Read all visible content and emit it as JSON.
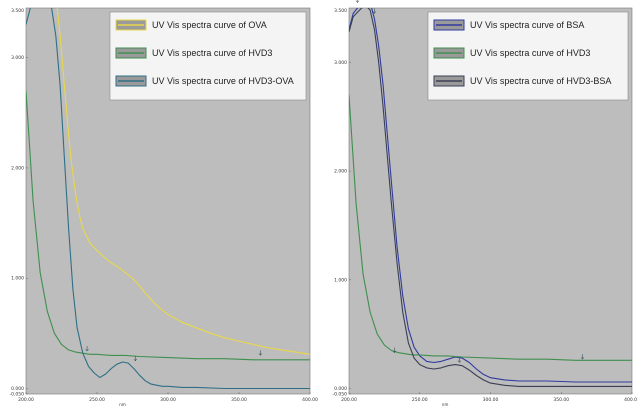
{
  "chart_data": [
    {
      "type": "line",
      "xlim": [
        200,
        400
      ],
      "ylim": [
        -0.05,
        3.45
      ],
      "x_ticks": [
        "200.00",
        "250.00",
        "300.00",
        "350.00",
        "400.00"
      ],
      "y_ticks": [
        "3.500",
        "3.000",
        "2.000",
        "1.000",
        "0.000",
        "-0.050"
      ],
      "xlabel": "nm",
      "ylabel": "",
      "grid": false,
      "background": "#bdbdbd",
      "legend_position": "top-right",
      "series": [
        {
          "name": "UV Vis spectra curve of OVA",
          "color": "#e8d84a",
          "x": [
            222,
            224,
            226,
            228,
            230,
            232,
            234,
            236,
            238,
            240,
            245,
            250,
            255,
            260,
            265,
            270,
            275,
            280,
            285,
            290,
            295,
            300,
            310,
            320,
            330,
            340,
            350,
            360,
            370,
            380,
            390,
            400
          ],
          "y": [
            3.45,
            3.2,
            2.9,
            2.6,
            2.3,
            2.05,
            1.85,
            1.68,
            1.55,
            1.45,
            1.32,
            1.25,
            1.19,
            1.14,
            1.1,
            1.05,
            1.0,
            0.93,
            0.85,
            0.78,
            0.72,
            0.67,
            0.6,
            0.55,
            0.5,
            0.46,
            0.43,
            0.4,
            0.37,
            0.35,
            0.33,
            0.31
          ]
        },
        {
          "name": "UV Vis spectra curve of HVD3",
          "color": "#3f8f4f",
          "x": [
            200,
            205,
            210,
            215,
            220,
            225,
            230,
            235,
            240,
            245,
            250,
            260,
            270,
            280,
            300,
            320,
            340,
            360,
            380,
            400
          ],
          "y": [
            2.7,
            1.7,
            1.05,
            0.7,
            0.5,
            0.4,
            0.35,
            0.33,
            0.32,
            0.31,
            0.31,
            0.3,
            0.3,
            0.29,
            0.28,
            0.27,
            0.27,
            0.26,
            0.26,
            0.26
          ]
        },
        {
          "name": "UV Vis spectra curve of HVD3-OVA",
          "color": "#2f6f86",
          "x": [
            200,
            203,
            206,
            209,
            212,
            215,
            218,
            221,
            224,
            227,
            230,
            233,
            236,
            240,
            244,
            248,
            252,
            256,
            260,
            264,
            268,
            272,
            276,
            280,
            284,
            288,
            292,
            296,
            300,
            310,
            320,
            340,
            360,
            380,
            400
          ],
          "y": [
            3.3,
            3.45,
            3.5,
            3.55,
            3.57,
            3.55,
            3.45,
            3.2,
            2.75,
            2.1,
            1.45,
            0.9,
            0.55,
            0.32,
            0.2,
            0.14,
            0.1,
            0.13,
            0.18,
            0.22,
            0.24,
            0.23,
            0.18,
            0.12,
            0.07,
            0.04,
            0.03,
            0.02,
            0.02,
            0.01,
            0.01,
            0.0,
            0.0,
            0.0,
            0.0
          ]
        }
      ]
    },
    {
      "type": "line",
      "xlim": [
        200,
        400
      ],
      "ylim": [
        -0.05,
        3.5
      ],
      "x_ticks": [
        "200.00",
        "250.00",
        "300.00",
        "350.00",
        "400.00"
      ],
      "y_ticks": [
        "3.500",
        "3.000",
        "2.000",
        "1.000",
        "0.000",
        "-0.050"
      ],
      "xlabel": "nm",
      "ylabel": "",
      "grid": false,
      "background": "#bdbdbd",
      "legend_position": "top-right",
      "series": [
        {
          "name": "UV Vis spectra curve of BSA",
          "color": "#2f3aa0",
          "x": [
            200,
            203,
            206,
            209,
            212,
            215,
            218,
            221,
            224,
            227,
            230,
            234,
            238,
            242,
            246,
            250,
            255,
            260,
            265,
            270,
            275,
            280,
            285,
            290,
            295,
            300,
            310,
            320,
            340,
            360,
            380,
            400
          ],
          "y": [
            3.3,
            3.45,
            3.5,
            3.55,
            3.6,
            3.55,
            3.4,
            3.15,
            2.8,
            2.35,
            1.9,
            1.3,
            0.85,
            0.55,
            0.38,
            0.3,
            0.25,
            0.24,
            0.25,
            0.27,
            0.29,
            0.28,
            0.24,
            0.18,
            0.13,
            0.1,
            0.08,
            0.07,
            0.07,
            0.06,
            0.06,
            0.06
          ]
        },
        {
          "name": "UV Vis spectra curve of HVD3",
          "color": "#3f8f4f",
          "x": [
            200,
            205,
            210,
            215,
            220,
            225,
            230,
            235,
            240,
            245,
            250,
            260,
            270,
            280,
            300,
            320,
            340,
            360,
            380,
            400
          ],
          "y": [
            2.7,
            1.7,
            1.05,
            0.7,
            0.5,
            0.4,
            0.35,
            0.33,
            0.32,
            0.31,
            0.31,
            0.3,
            0.3,
            0.29,
            0.28,
            0.27,
            0.27,
            0.26,
            0.26,
            0.26
          ]
        },
        {
          "name": "UV Vis spectra curve of HVD3-BSA",
          "color": "#3a3f55",
          "x": [
            200,
            203,
            206,
            209,
            212,
            215,
            218,
            221,
            224,
            227,
            230,
            234,
            238,
            242,
            246,
            250,
            255,
            260,
            265,
            270,
            275,
            280,
            285,
            290,
            295,
            300,
            310,
            320,
            340,
            360,
            380,
            400
          ],
          "y": [
            3.28,
            3.42,
            3.46,
            3.5,
            3.52,
            3.48,
            3.3,
            3.0,
            2.6,
            2.15,
            1.7,
            1.15,
            0.7,
            0.42,
            0.28,
            0.22,
            0.19,
            0.18,
            0.19,
            0.21,
            0.22,
            0.21,
            0.17,
            0.12,
            0.08,
            0.05,
            0.03,
            0.02,
            0.02,
            0.02,
            0.02,
            0.02
          ]
        }
      ]
    }
  ]
}
